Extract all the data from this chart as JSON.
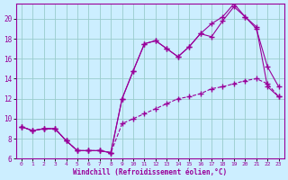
{
  "xlabel": "Windchill (Refroidissement éolien,°C)",
  "bg_color": "#cceeff",
  "line_color": "#990099",
  "grid_color": "#99cccc",
  "xlim": [
    -0.5,
    23.5
  ],
  "ylim": [
    6,
    21.5
  ],
  "yticks": [
    6,
    8,
    10,
    12,
    14,
    16,
    18,
    20
  ],
  "xticks": [
    0,
    1,
    2,
    3,
    4,
    5,
    6,
    7,
    8,
    9,
    10,
    11,
    12,
    13,
    14,
    15,
    16,
    17,
    18,
    19,
    20,
    21,
    22,
    23
  ],
  "series1_x": [
    0,
    1,
    2,
    3,
    4,
    5,
    6,
    7,
    8,
    9,
    10,
    11,
    12,
    13,
    14,
    15,
    16,
    17,
    18,
    19,
    20,
    21,
    22,
    23
  ],
  "series1_y": [
    9.2,
    8.8,
    9.0,
    9.0,
    7.8,
    6.8,
    6.8,
    6.8,
    6.6,
    9.5,
    10.0,
    10.5,
    11.0,
    11.5,
    12.0,
    12.2,
    12.5,
    13.0,
    13.2,
    13.5,
    13.8,
    14.0,
    13.5,
    12.2
  ],
  "series2_x": [
    0,
    1,
    2,
    3,
    4,
    5,
    6,
    7,
    8,
    9,
    10,
    11,
    12,
    13,
    14,
    15,
    16,
    17,
    18,
    19,
    20,
    21,
    22,
    23
  ],
  "series2_y": [
    9.2,
    8.8,
    9.0,
    9.0,
    7.8,
    6.8,
    6.8,
    6.8,
    6.6,
    12.0,
    14.8,
    17.5,
    17.8,
    17.0,
    16.2,
    17.2,
    18.5,
    18.2,
    19.8,
    21.2,
    20.2,
    19.0,
    15.2,
    13.2
  ],
  "series3_x": [
    0,
    1,
    2,
    3,
    4,
    5,
    6,
    7,
    8,
    9,
    10,
    11,
    12,
    13,
    14,
    15,
    16,
    17,
    18,
    19,
    20,
    21,
    22,
    23
  ],
  "series3_y": [
    9.2,
    8.8,
    9.0,
    9.0,
    7.8,
    6.8,
    6.8,
    6.8,
    6.6,
    12.0,
    14.8,
    17.5,
    17.8,
    17.0,
    16.2,
    17.2,
    18.5,
    19.5,
    20.2,
    21.5,
    20.2,
    19.2,
    13.2,
    12.2
  ]
}
